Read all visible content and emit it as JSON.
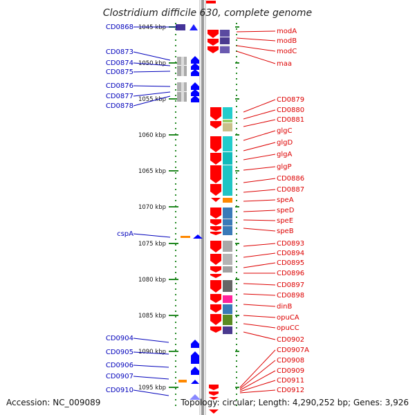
{
  "title": "Clostridium difficile 630, complete genome",
  "footer": {
    "accession": "Accession: NC_009089",
    "topology": "Topology: circular; Length: 4,290,252 bp; Genes: 3,926"
  },
  "colors": {
    "forward_label": "#0000bb",
    "reverse_label": "#dd0000",
    "forward_gene": "#0000ff",
    "reverse_gene": "#ff0000",
    "tick": "#228822",
    "backbone": "#999999"
  },
  "scale_labels": [
    "1045 kbp",
    "1050 kbp",
    "1055 kbp",
    "1060 kbp",
    "1065 kbp",
    "1070 kbp",
    "1075 kbp",
    "1080 kbp",
    "1085 kbp",
    "1090 kbp",
    "1095 kbp"
  ],
  "left_labels": [
    "CD0868",
    "CD0873",
    "CD0874",
    "CD0875",
    "CD0876",
    "CD0877",
    "CD0878",
    "cspA",
    "CD0904",
    "CD0905",
    "CD0906",
    "CD0907",
    "CD0910"
  ],
  "right_labels": [
    "modA",
    "modB",
    "modC",
    "maa",
    "CD0879",
    "CD0880",
    "CD0881",
    "glgC",
    "glgD",
    "glgA",
    "glgP",
    "CD0886",
    "CD0887",
    "speA",
    "speD",
    "speE",
    "speB",
    "CD0893",
    "CD0894",
    "CD0895",
    "CD0896",
    "CD0897",
    "CD0898",
    "dinB",
    "opuCA",
    "opuCC",
    "CD0902",
    "CD0907A",
    "CD0908",
    "CD0909",
    "CD0911",
    "CD0912"
  ]
}
